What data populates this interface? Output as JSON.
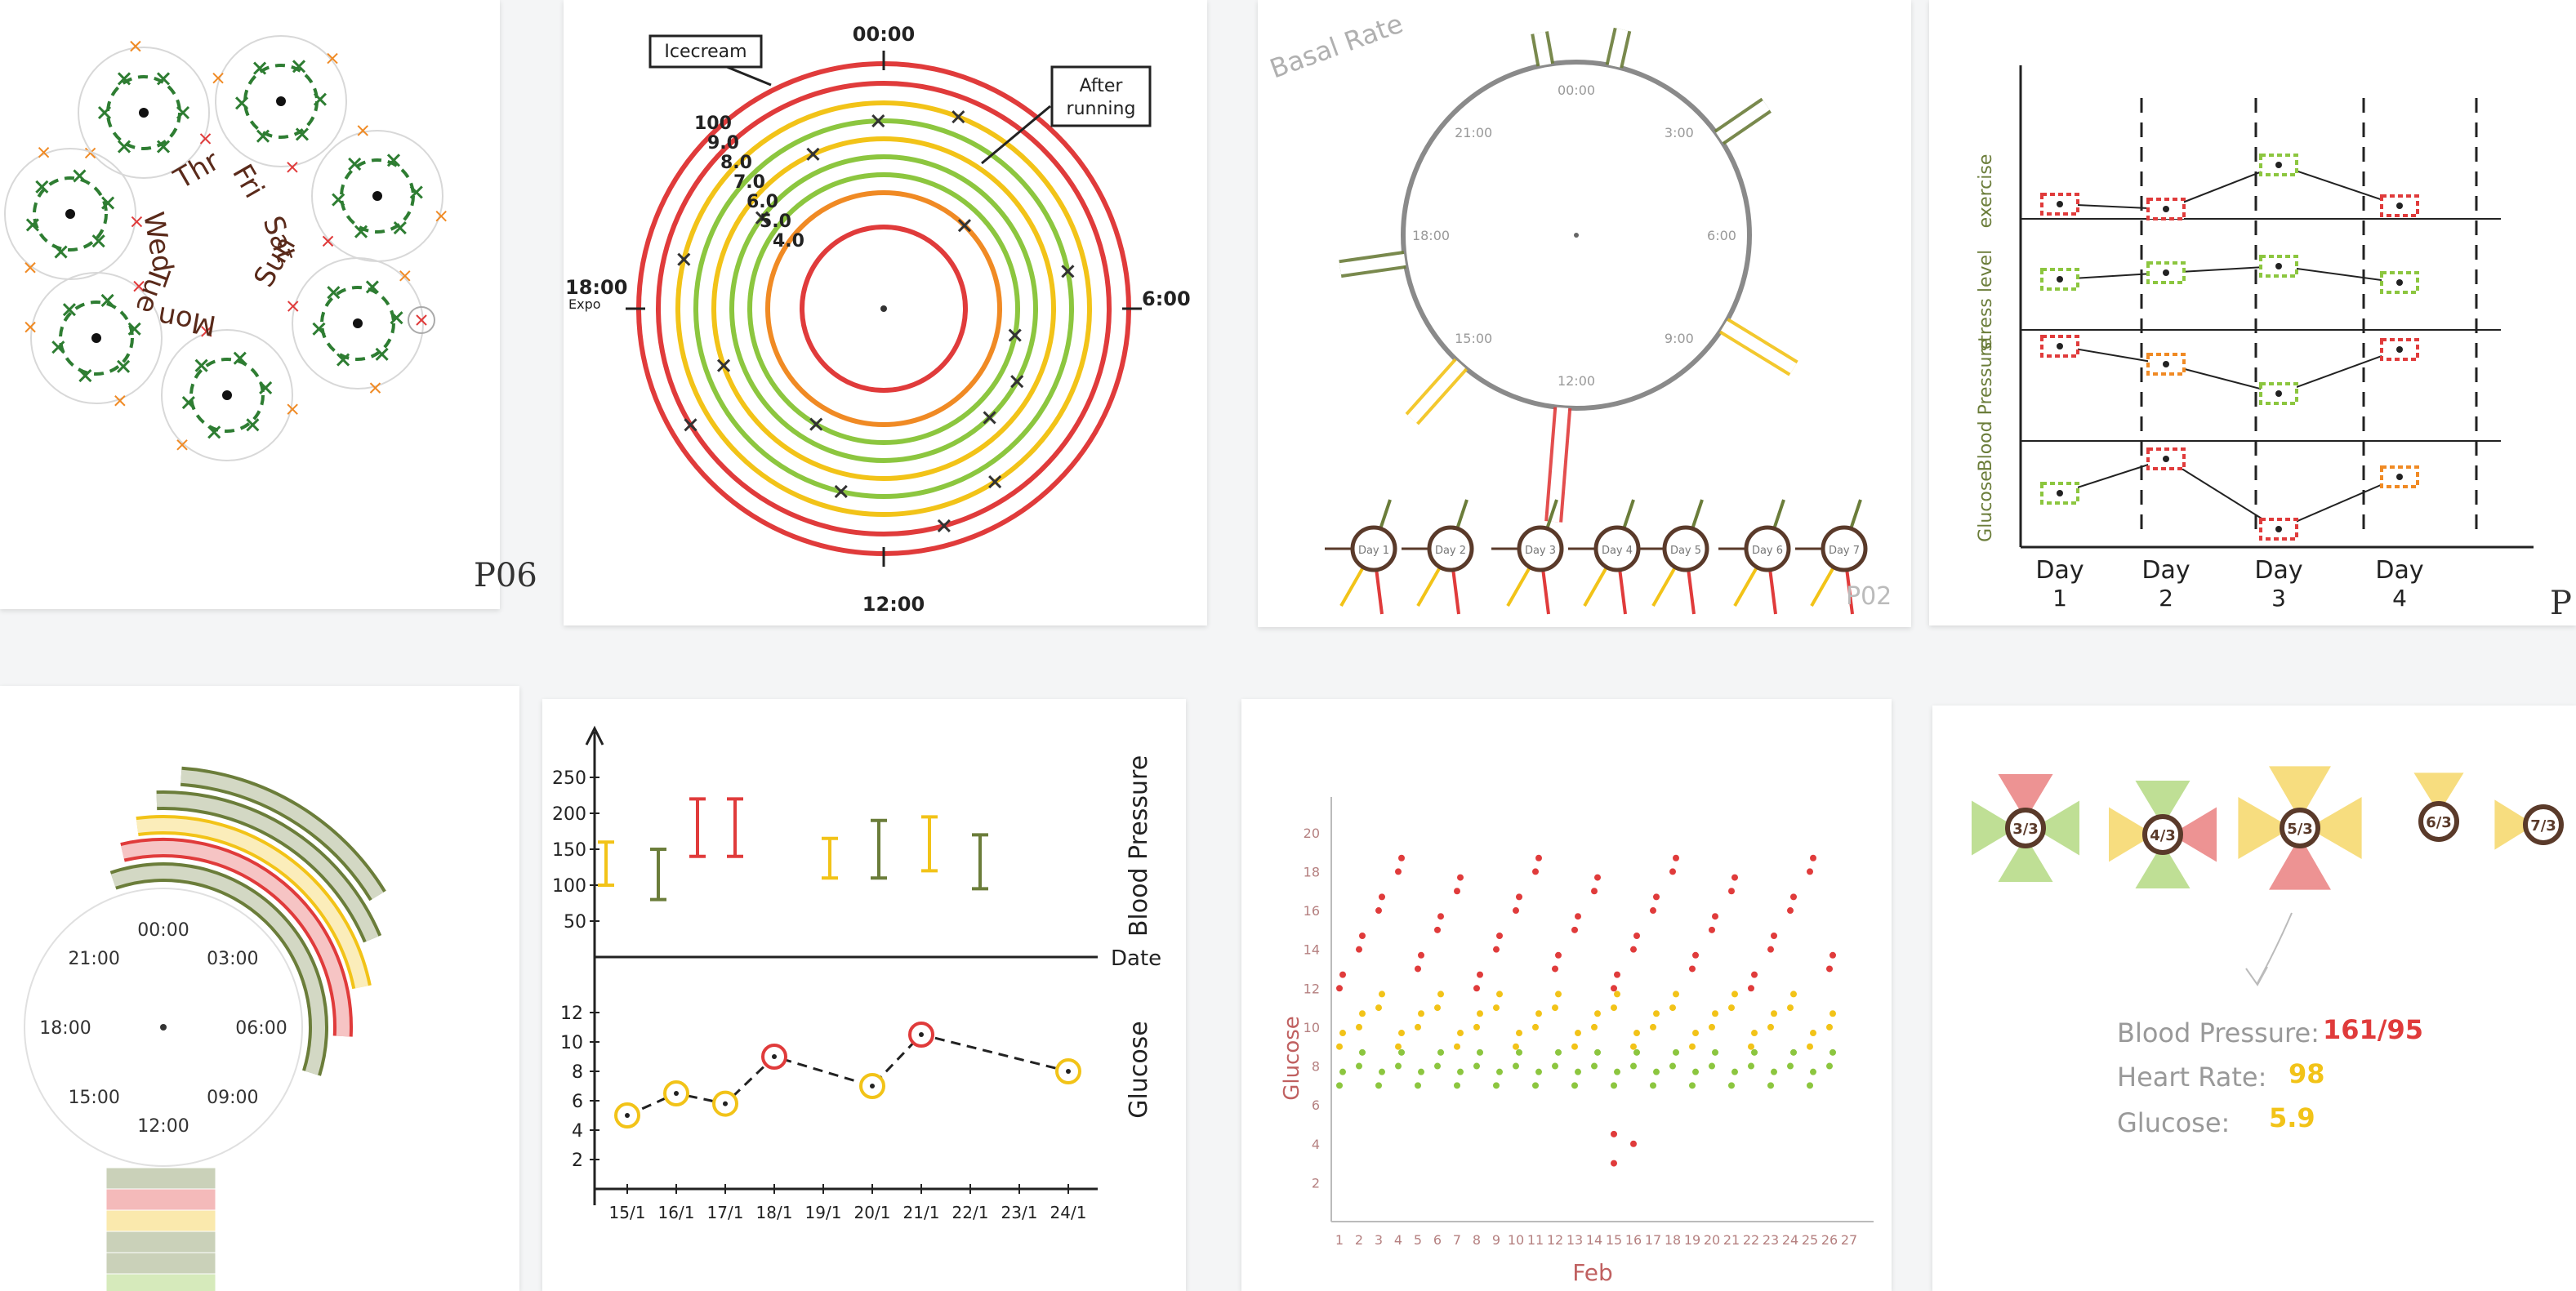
{
  "colors": {
    "red": "#e03b3b",
    "orange": "#f08a24",
    "yellow": "#f2c318",
    "lightgreen": "#8cc63f",
    "darkgreen": "#2e7d32",
    "olive": "#6b7d3a",
    "brown": "#5a3a2a",
    "grey": "#8a8a8a",
    "ink": "#222222"
  },
  "p06": {
    "label": "P06",
    "days": [
      "Thr",
      "Fri",
      "Sat",
      "Sun",
      "Mon",
      "Tue",
      "Wed"
    ]
  },
  "rings": {
    "annotation_icecream": "Icecream",
    "annotation_running": "After running",
    "time_top": "00:00",
    "time_right": "6:00",
    "time_bottom": "12:00",
    "time_left": "18:00",
    "time_left_sub": "Expo",
    "ring_labels": [
      "100",
      "9.0",
      "8.0",
      "7.0",
      "6.0",
      "5.0",
      "4.0"
    ]
  },
  "basal": {
    "title": "Basal Rate",
    "clock_labels": [
      "00:00",
      "3:00",
      "6:00",
      "9:00",
      "12:00",
      "15:00",
      "18:00",
      "21:00"
    ],
    "day_labels": [
      "Day 1",
      "Day 2",
      "Day 3",
      "Day 4",
      "Day 5",
      "Day 6",
      "Day 7"
    ],
    "pid": "P02"
  },
  "lines4": {
    "rows": [
      "exercise",
      "stress level",
      "Blood Pressure",
      "Glucose"
    ],
    "days": [
      {
        "l1": "Day",
        "l2": "1"
      },
      {
        "l1": "Day",
        "l2": "2"
      },
      {
        "l1": "Day",
        "l2": "3"
      },
      {
        "l1": "Day",
        "l2": "4"
      }
    ],
    "pid": "P"
  },
  "arcs": {
    "clock_labels": [
      "00:00",
      "03:00",
      "06:00",
      "09:00",
      "12:00",
      "15:00",
      "18:00",
      "21:00"
    ]
  },
  "bpglucose": {
    "bp_title": "Blood Pressure",
    "glucose_title": "Glucose",
    "axis_label": "Date",
    "bp_ticks": [
      "250",
      "200",
      "150",
      "100",
      "50"
    ],
    "glucose_ticks": [
      "12",
      "10",
      "8",
      "6",
      "4",
      "2"
    ],
    "dates": [
      "15/1",
      "16/1",
      "17/1",
      "18/1",
      "19/1",
      "20/1",
      "21/1",
      "22/1",
      "23/1",
      "24/1"
    ],
    "bp_ranges": [
      [
        100,
        160,
        "yellow"
      ],
      [
        80,
        150,
        "olive"
      ],
      [
        140,
        220,
        "red"
      ],
      [
        140,
        220,
        "red"
      ],
      [
        110,
        165,
        "yellow"
      ],
      [
        110,
        190,
        "olive"
      ],
      [
        120,
        195,
        "yellow"
      ],
      [
        95,
        170,
        "olive"
      ]
    ],
    "glucose_points": [
      [
        0,
        5,
        "yellow"
      ],
      [
        1,
        6.5,
        "yellow"
      ],
      [
        2,
        5.8,
        "yellow"
      ],
      [
        3,
        9,
        "red"
      ],
      [
        5,
        7,
        "yellow"
      ],
      [
        6,
        10.5,
        "red"
      ],
      [
        9,
        8,
        "yellow"
      ]
    ]
  },
  "scatter": {
    "ylabel": "Glucose",
    "xlabel": "Feb",
    "y_ticks": [
      "20",
      "18",
      "16",
      "14",
      "12",
      "10",
      "8",
      "6",
      "4",
      "2"
    ],
    "x_ticks": [
      "1",
      "2",
      "3",
      "4",
      "5",
      "6",
      "7",
      "8",
      "9",
      "10",
      "11",
      "12",
      "13",
      "14",
      "15",
      "16",
      "17",
      "18",
      "19",
      "20",
      "21",
      "22",
      "23",
      "24",
      "25",
      "26",
      "27"
    ]
  },
  "flowers": {
    "dates": [
      "3/3",
      "4/3",
      "5/3",
      "6/3",
      "7/3"
    ],
    "bp_label": "Blood Pressure:",
    "bp_value": "161/95",
    "hr_label": "Heart Rate:",
    "hr_value": "98",
    "gl_label": "Glucose:",
    "gl_value": "5.9"
  }
}
